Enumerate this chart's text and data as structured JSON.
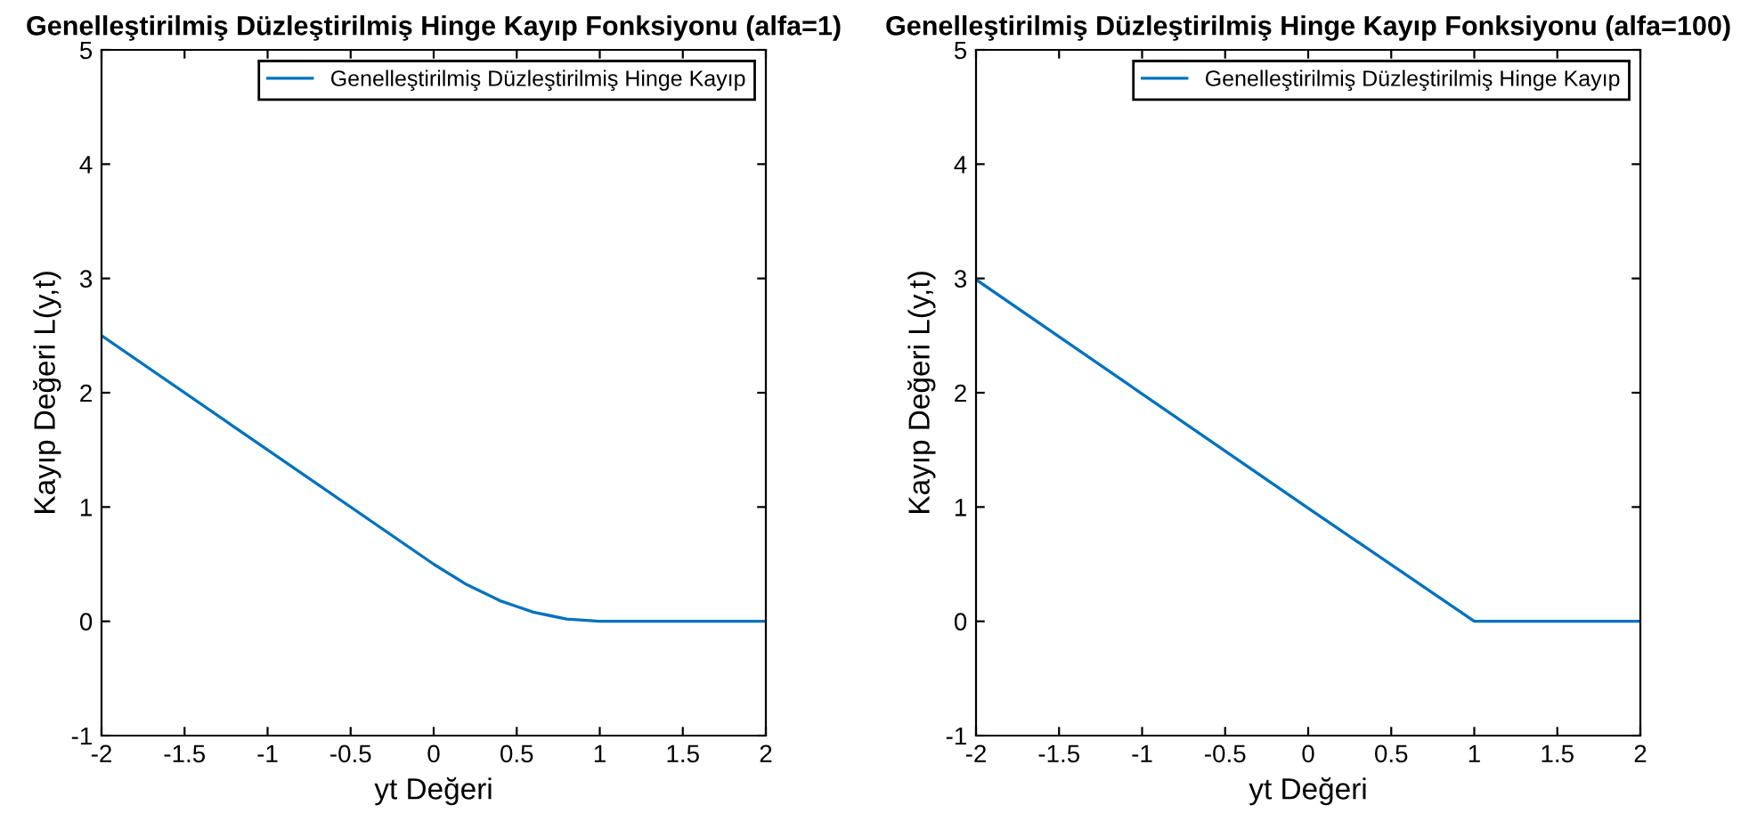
{
  "chart_data": [
    {
      "type": "line",
      "title": "Genelleştirilmiş Düzleştirilmiş Hinge Kayıp Fonksiyonu (alfa=1)",
      "xlabel": "yt Değeri",
      "ylabel": "Kayıp Değeri L(y,t)",
      "xlim": [
        -2,
        2
      ],
      "ylim": [
        -1,
        5
      ],
      "xticks": [
        -2,
        -1.5,
        -1,
        -0.5,
        0,
        0.5,
        1,
        1.5,
        2
      ],
      "yticks": [
        -1,
        0,
        1,
        2,
        3,
        4,
        5
      ],
      "legend": "top right",
      "series": [
        {
          "name": "Genelleştirilmiş Düzleştirilmiş Hinge Kayıp",
          "color": "#0072bd",
          "x": [
            -2,
            0,
            0.1,
            0.2,
            0.3,
            0.4,
            0.5,
            0.6,
            0.7,
            0.8,
            0.9,
            1,
            2
          ],
          "values": [
            2.5,
            0.5,
            0.41,
            0.32,
            0.25,
            0.18,
            0.13,
            0.08,
            0.05,
            0.02,
            0.01,
            0,
            0
          ]
        }
      ]
    },
    {
      "type": "line",
      "title": "Genelleştirilmiş Düzleştirilmiş Hinge Kayıp Fonksiyonu (alfa=100)",
      "xlabel": "yt Değeri",
      "ylabel": "Kayıp Değeri L(y,t)",
      "xlim": [
        -2,
        2
      ],
      "ylim": [
        -1,
        5
      ],
      "xticks": [
        -2,
        -1.5,
        -1,
        -0.5,
        0,
        0.5,
        1,
        1.5,
        2
      ],
      "yticks": [
        -1,
        0,
        1,
        2,
        3,
        4,
        5
      ],
      "legend": "top right",
      "series": [
        {
          "name": "Genelleştirilmiş Düzleştirilmiş Hinge Kayıp",
          "color": "#0072bd",
          "x": [
            -2,
            0,
            1,
            2
          ],
          "values": [
            2.99,
            0.99,
            0,
            0
          ]
        }
      ]
    }
  ]
}
